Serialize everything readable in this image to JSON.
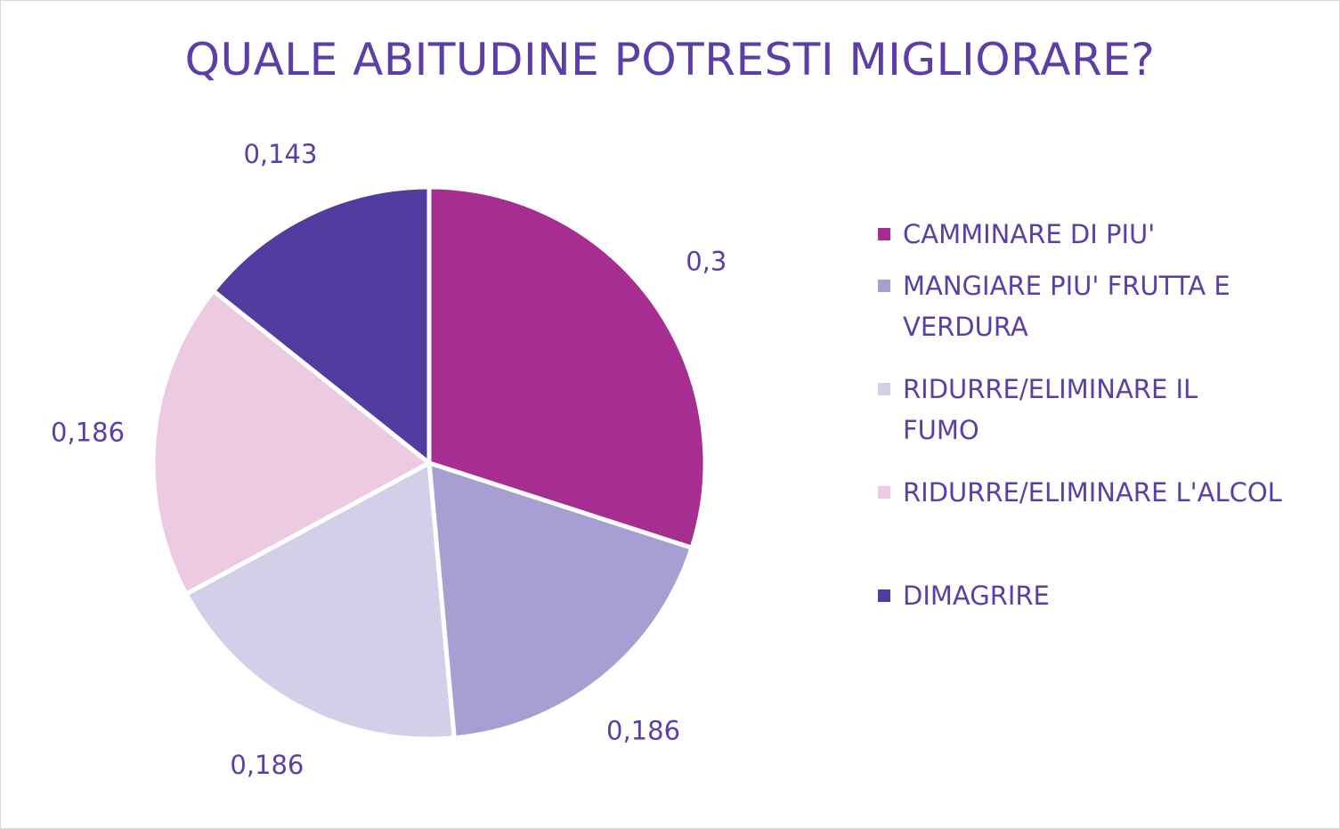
{
  "chart_data": {
    "type": "pie",
    "title": "QUALE ABITUDINE POTRESTI MIGLIORARE?",
    "categories": [
      "CAMMINARE DI PIU'",
      "MANGIARE PIU' FRUTTA E VERDURA",
      "RIDURRE/ELIMINARE IL FUMO",
      "RIDURRE/ELIMINARE L'ALCOL",
      "DIMAGRIRE"
    ],
    "values": [
      0.3,
      0.186,
      0.186,
      0.186,
      0.143
    ],
    "value_labels": [
      "0,3",
      "0,186",
      "0,186",
      "0,186",
      "0,143"
    ],
    "colors": [
      "#a72e91",
      "#a79fd1",
      "#d3cfe9",
      "#ebcae2",
      "#523ca0"
    ],
    "legend_position": "right",
    "start_angle": "12 o'clock",
    "direction": "clockwise"
  }
}
